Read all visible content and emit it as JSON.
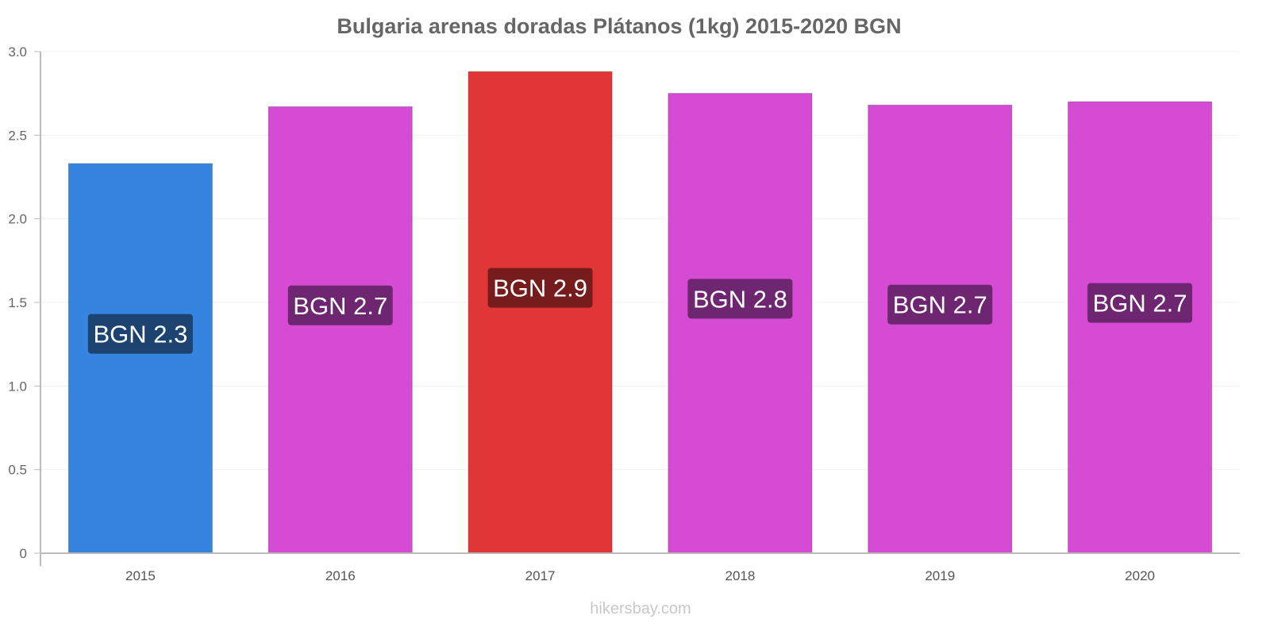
{
  "chart_data": {
    "type": "bar",
    "title": "Bulgaria arenas doradas Plátanos (1kg) 2015-2020 BGN",
    "xlabel": "",
    "ylabel": "",
    "ylim": [
      0,
      3.0
    ],
    "yticks": [
      "0",
      "0.5",
      "1.0",
      "1.5",
      "2.0",
      "2.5",
      "3.0"
    ],
    "ytick_values": [
      0,
      0.5,
      1.0,
      1.5,
      2.0,
      2.5,
      3.0
    ],
    "categories": [
      "2015",
      "2016",
      "2017",
      "2018",
      "2019",
      "2020"
    ],
    "values": [
      2.33,
      2.67,
      2.88,
      2.75,
      2.68,
      2.7
    ],
    "data_labels": [
      "BGN 2.3",
      "BGN 2.7",
      "BGN 2.9",
      "BGN 2.8",
      "BGN 2.7",
      "BGN 2.7"
    ],
    "bar_colors": [
      "#3584e0",
      "#d64bd4",
      "#e03636",
      "#d64bd4",
      "#d64bd4",
      "#d64bd4"
    ],
    "label_colors": [
      "#1d4370",
      "#6e2670",
      "#761c1c",
      "#6e2670",
      "#6e2670",
      "#6e2670"
    ],
    "grid": true
  },
  "watermark": "hikersbay.com"
}
